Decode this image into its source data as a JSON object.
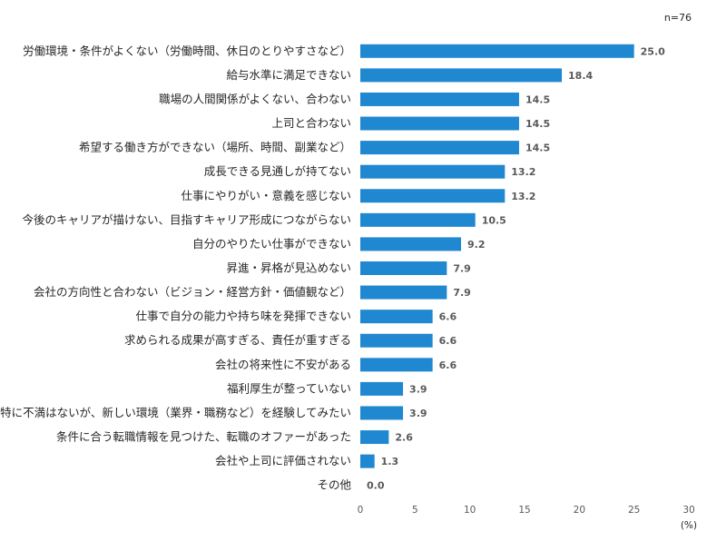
{
  "chart_data": {
    "type": "bar",
    "orientation": "horizontal",
    "note": "n=76",
    "unit": "(%)",
    "bar_color": "#1f88d1",
    "xlim": [
      0,
      30
    ],
    "xticks": [
      "0",
      "5",
      "10",
      "15",
      "20",
      "25",
      "30"
    ],
    "categories": [
      "労働環境・条件がよくない（労働時間、休日のとりやすさなど）",
      "給与水準に満足できない",
      "職場の人間関係がよくない、合わない",
      "上司と合わない",
      "希望する働き方ができない（場所、時間、副業など）",
      "成長できる見通しが持てない",
      "仕事にやりがい・意義を感じない",
      "今後のキャリアが描けない、目指すキャリア形成につながらない",
      "自分のやりたい仕事ができない",
      "昇進・昇格が見込めない",
      "会社の方向性と合わない（ビジョン・経営方針・価値観など）",
      "仕事で自分の能力や持ち味を発揮できない",
      "求められる成果が高すぎる、責任が重すぎる",
      "会社の将来性に不安がある",
      "福利厚生が整っていない",
      "特に不満はないが、新しい環境（業界・職務など）を経験してみたい",
      "条件に合う転職情報を見つけた、転職のオファーがあった",
      "会社や上司に評価されない",
      "その他"
    ],
    "values": [
      25.0,
      18.4,
      14.5,
      14.5,
      14.5,
      13.2,
      13.2,
      10.5,
      9.2,
      7.9,
      7.9,
      6.6,
      6.6,
      6.6,
      3.9,
      3.9,
      2.6,
      1.3,
      0.0
    ],
    "value_labels": [
      "25.0",
      "18.4",
      "14.5",
      "14.5",
      "14.5",
      "13.2",
      "13.2",
      "10.5",
      "9.2",
      "7.9",
      "7.9",
      "6.6",
      "6.6",
      "6.6",
      "3.9",
      "3.9",
      "2.6",
      "1.3",
      "0.0"
    ]
  }
}
